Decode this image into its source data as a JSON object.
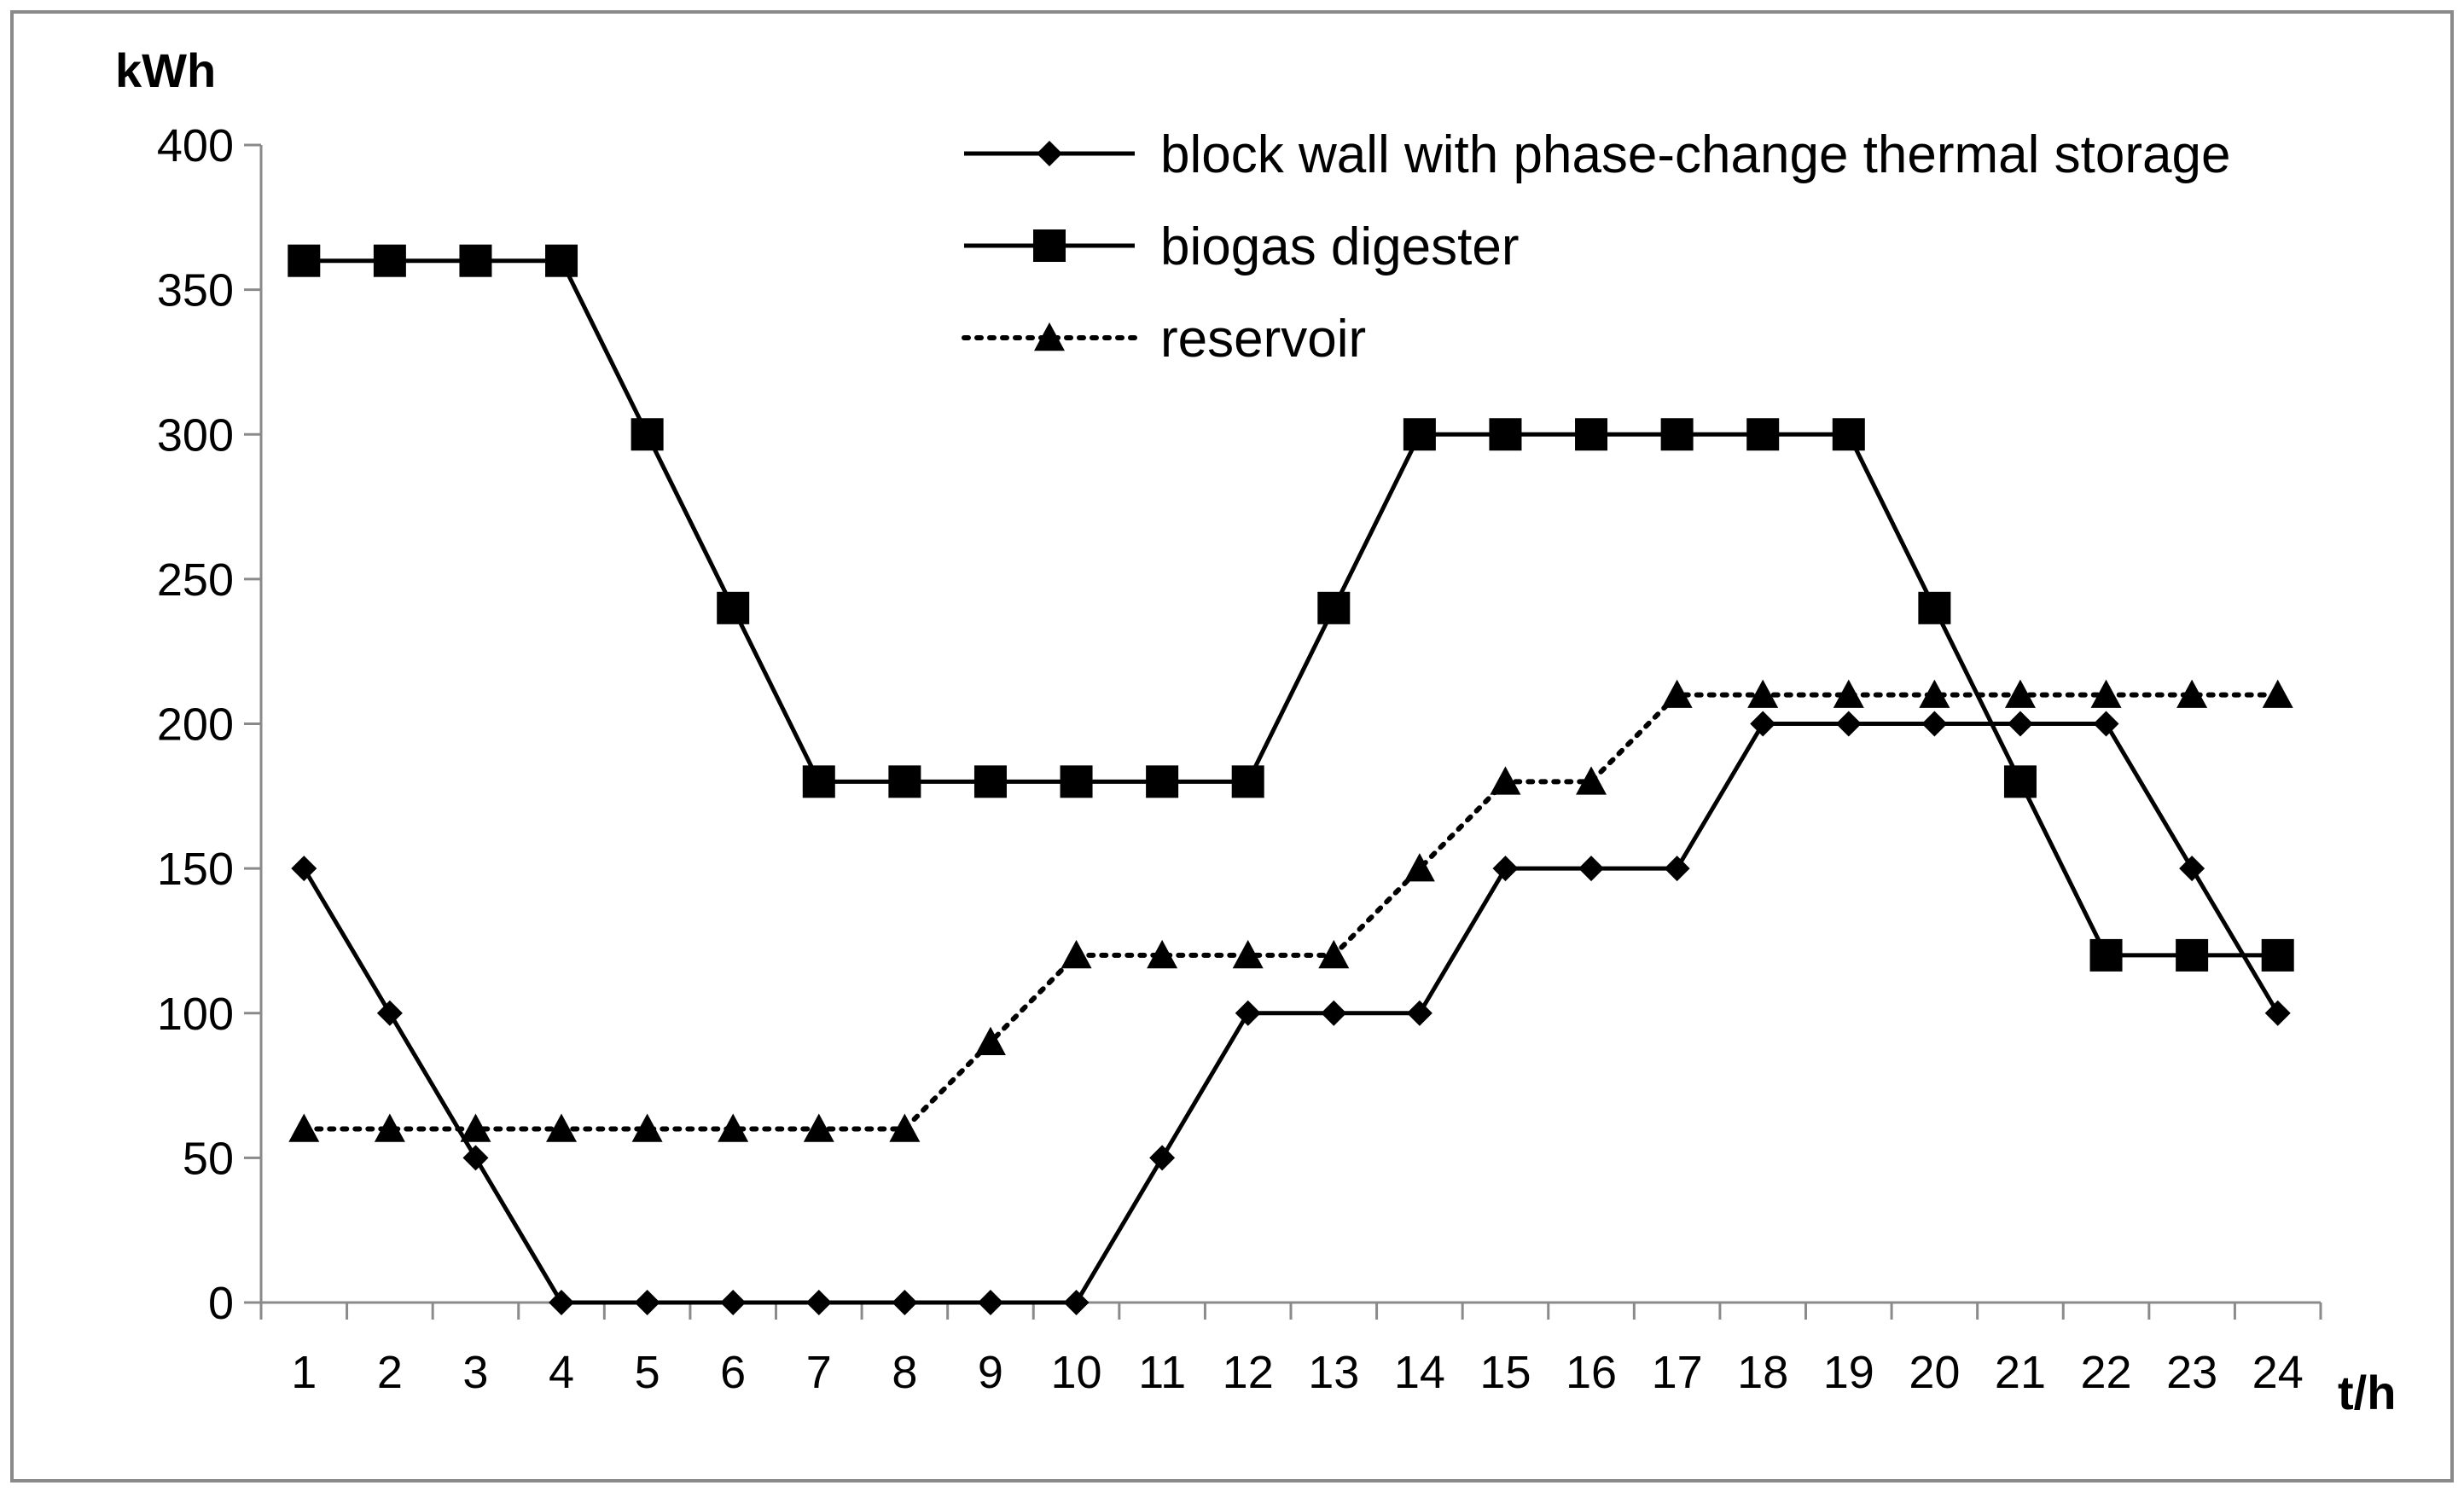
{
  "chart_data": {
    "type": "line",
    "ylabel": "kWh",
    "xlabel": "t/h",
    "ylim": [
      0,
      400
    ],
    "yticks": [
      0,
      50,
      100,
      150,
      200,
      250,
      300,
      350,
      400
    ],
    "categories": [
      "1",
      "2",
      "3",
      "4",
      "5",
      "6",
      "7",
      "8",
      "9",
      "10",
      "11",
      "12",
      "13",
      "14",
      "15",
      "16",
      "17",
      "18",
      "19",
      "20",
      "21",
      "22",
      "23",
      "24"
    ],
    "grid": false,
    "legend_position": "top-right",
    "series": [
      {
        "name": "block wall with phase-change thermal storage",
        "marker": "diamond",
        "line_style": "solid",
        "color": "#000000",
        "values": [
          150,
          100,
          50,
          0,
          0,
          0,
          0,
          0,
          0,
          0,
          50,
          100,
          100,
          100,
          150,
          150,
          150,
          200,
          200,
          200,
          200,
          200,
          150,
          100
        ]
      },
      {
        "name": "biogas digester",
        "marker": "square",
        "line_style": "solid",
        "color": "#000000",
        "values": [
          360,
          360,
          360,
          360,
          300,
          240,
          180,
          180,
          180,
          180,
          180,
          180,
          240,
          300,
          300,
          300,
          300,
          300,
          300,
          240,
          180,
          120,
          120,
          120
        ]
      },
      {
        "name": "reservoir",
        "marker": "triangle",
        "line_style": "dotted",
        "color": "#000000",
        "values": [
          60,
          60,
          60,
          60,
          60,
          60,
          60,
          60,
          90,
          120,
          120,
          120,
          120,
          150,
          180,
          180,
          210,
          210,
          210,
          210,
          210,
          210,
          210,
          210
        ]
      }
    ]
  }
}
